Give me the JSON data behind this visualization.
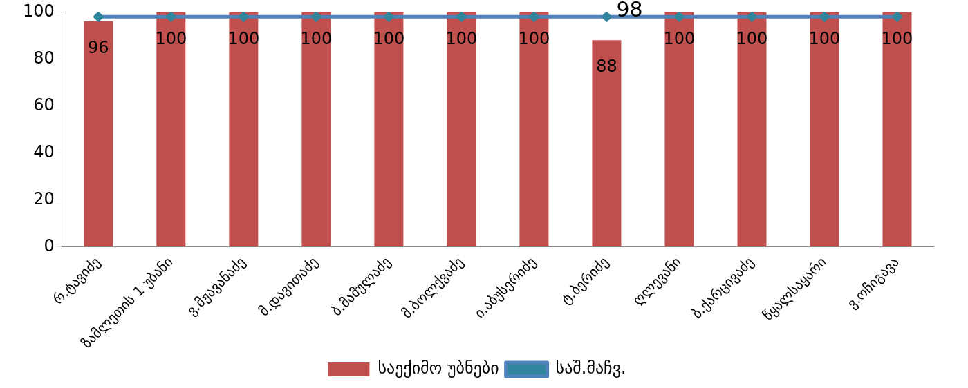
{
  "chart_data": {
    "type": "bar",
    "categories": [
      "რ.ტავიძე",
      "ზამლეთის 1 უბანი",
      "ვ.მჟავანაძე",
      "მ.დავითაძე",
      "ბ.მამულაძე",
      "მ.ბოლქვაძე",
      "ი.აბუსერიძე",
      "ტ.ბერიძე",
      "ღლევანი",
      "ბ.ქარცივაძე",
      "წყალსაყარი",
      "ვ.ოჩიგავა"
    ],
    "series": [
      {
        "name": "საექიმო უბნები",
        "color": "#c0504d",
        "values": [
          96,
          100,
          100,
          100,
          100,
          100,
          100,
          88,
          100,
          100,
          100,
          100
        ],
        "value_labels": [
          "96",
          "100",
          "100",
          "100",
          "100",
          "100",
          "100",
          "88",
          "100",
          "100",
          "100",
          "100"
        ]
      },
      {
        "name": "საშ.მაჩვ.",
        "type": "line",
        "color": "#4f81bd",
        "values": [
          98,
          98,
          98,
          98,
          98,
          98,
          98,
          98,
          98,
          98,
          98,
          98
        ],
        "value_labels": [
          null,
          null,
          null,
          null,
          null,
          null,
          null,
          "98",
          null,
          null,
          null,
          null
        ]
      }
    ],
    "ylim": [
      0,
      100
    ],
    "yticks": [
      0,
      20,
      40,
      60,
      80,
      100
    ],
    "grid": false,
    "legend": "bottom",
    "marker": "diamond",
    "line_style": "solid"
  }
}
